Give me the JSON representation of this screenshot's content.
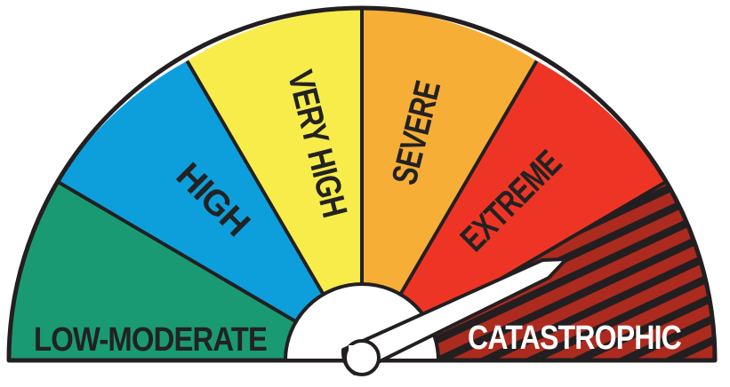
{
  "gauge": {
    "levels": [
      {
        "label": "LOW-MODERATE",
        "color": "#1a9a72"
      },
      {
        "label": "HIGH",
        "color": "#0c9fdc"
      },
      {
        "label": "VERY HIGH",
        "color": "#f7ec4a"
      },
      {
        "label": "SEVERE",
        "color": "#f7ae36"
      },
      {
        "label": "EXTREME",
        "color": "#ee3525"
      },
      {
        "label": "CATASTROPHIC",
        "color": "#ad2a1f",
        "pattern": "red-black-diagonal-stripes",
        "label_color": "#ffffff"
      }
    ],
    "indicated_level": "CATASTROPHIC",
    "outline_color": "#231f20",
    "hub_color": "#ffffff",
    "needle_color": "#ffffff"
  }
}
